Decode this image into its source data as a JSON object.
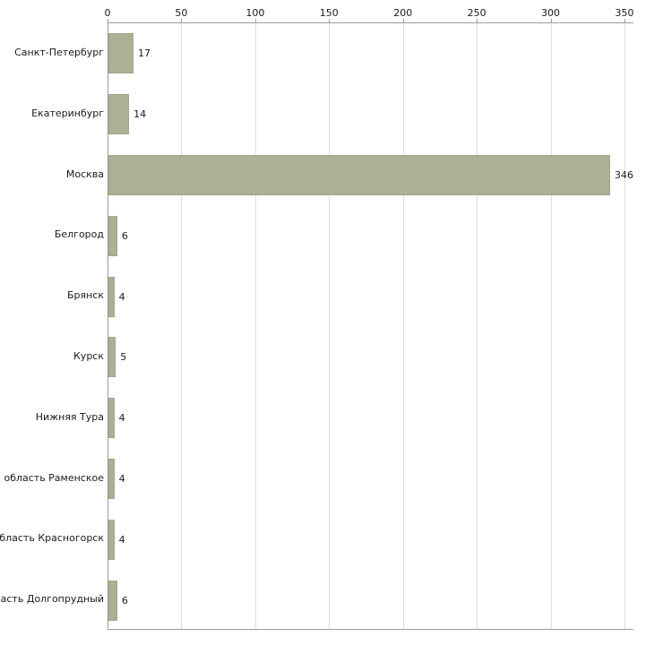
{
  "chart_data": {
    "type": "bar",
    "orientation": "horizontal",
    "title": "",
    "xlabel": "",
    "ylabel": "",
    "categories": [
      "Санкт-Петербург",
      "Екатеринбург",
      "Москва",
      "Белгород",
      "Брянск",
      "Курск",
      "Нижняя Тура",
      "я область Раменское",
      "область Красногорск",
      "ласть Долгопрудный"
    ],
    "values": [
      17,
      14,
      346,
      6,
      4,
      5,
      4,
      4,
      4,
      6
    ],
    "xlim": [
      0,
      350
    ],
    "x_ticks": [
      0,
      50,
      100,
      150,
      200,
      250,
      300,
      350
    ],
    "grid": true,
    "legend": false,
    "value_labels_shown": true,
    "bar_color": "#acb195",
    "bar_border_color": "#9ea585",
    "gridline_color": "#dcdcdc",
    "axis_color": "#9b9b9b",
    "text_color": "#1a1a1a"
  }
}
